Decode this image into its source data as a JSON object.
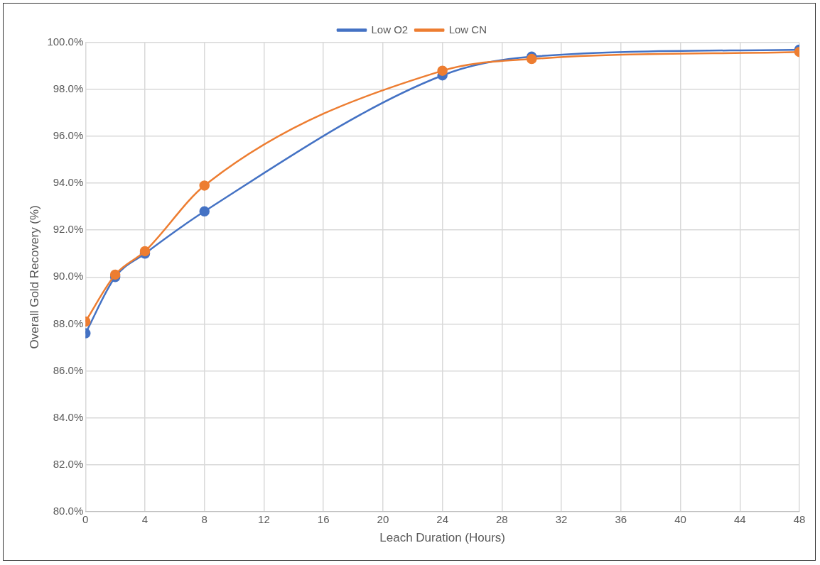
{
  "chart_data": {
    "type": "line",
    "xlabel": "Leach Duration (Hours)",
    "ylabel": "Overall Gold Recovery (%)",
    "x": [
      0,
      2,
      4,
      8,
      24,
      30,
      48
    ],
    "series": [
      {
        "name": "Low O2",
        "color": "#4472c4",
        "values": [
          87.6,
          90.0,
          91.0,
          92.8,
          98.6,
          99.4,
          99.7
        ]
      },
      {
        "name": "Low CN",
        "color": "#ed7d31",
        "values": [
          88.1,
          90.1,
          91.1,
          93.9,
          98.8,
          99.3,
          99.6
        ]
      }
    ],
    "xlim": [
      0,
      48
    ],
    "xticks": [
      0,
      4,
      8,
      12,
      16,
      20,
      24,
      28,
      32,
      36,
      40,
      44,
      48
    ],
    "ylim": [
      80,
      100
    ],
    "yticks": [
      {
        "value": 80,
        "label": "80.0%"
      },
      {
        "value": 82,
        "label": "82.0%"
      },
      {
        "value": 84,
        "label": "84.0%"
      },
      {
        "value": 86,
        "label": "86.0%"
      },
      {
        "value": 88,
        "label": "88.0%"
      },
      {
        "value": 90,
        "label": "90.0%"
      },
      {
        "value": 92,
        "label": "92.0%"
      },
      {
        "value": 94,
        "label": "94.0%"
      },
      {
        "value": 96,
        "label": "96.0%"
      },
      {
        "value": 98,
        "label": "98.0%"
      },
      {
        "value": 100,
        "label": "100.0%"
      }
    ],
    "grid": true,
    "legend": "top",
    "marker": "circle",
    "line_style": "solid"
  }
}
